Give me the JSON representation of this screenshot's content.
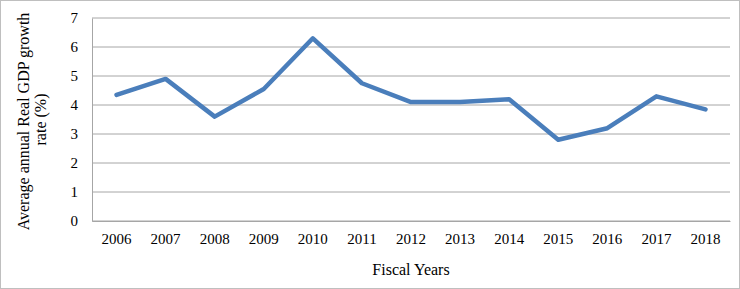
{
  "chart_data": {
    "type": "line",
    "x_label": "Fiscal Years",
    "y_label": "Average annual Real GDP growth rate (%)",
    "categories": [
      "2006",
      "2007",
      "2008",
      "2009",
      "2010",
      "2011",
      "2012",
      "2013",
      "2014",
      "2015",
      "2016",
      "2017",
      "2018"
    ],
    "values": [
      4.35,
      4.9,
      3.6,
      4.55,
      6.3,
      4.75,
      4.1,
      4.1,
      4.2,
      2.8,
      3.2,
      4.3,
      3.85
    ],
    "color": "#4a7ebb",
    "ylim": [
      0,
      7
    ],
    "yticks": [
      0,
      1,
      2,
      3,
      4,
      5,
      6,
      7
    ],
    "grid": true
  }
}
